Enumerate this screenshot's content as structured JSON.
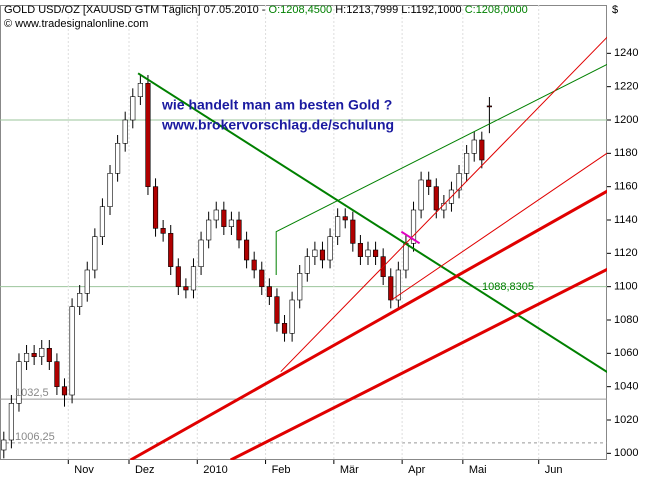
{
  "chart_data": {
    "type": "candlestick",
    "title": "GOLD USD/OZ [XAUUSD GTM  Täglich] 07.05.2010 -",
    "ohlc_labels": [
      {
        "text": "O:1208,4500",
        "color": "#008000"
      },
      {
        "text": "H:1213,7999",
        "color": "#000000"
      },
      {
        "text": "L:1192,1000",
        "color": "#000000"
      },
      {
        "text": "C:1208,0000",
        "color": "#008000"
      }
    ],
    "copyright": "© www.tradesignalonline.com",
    "y_unit": "$",
    "annotations": [
      "wie handelt man am besten Gold ?",
      "www.brokervorschlag.de/schulung"
    ],
    "categories": [
      null,
      null,
      null,
      null,
      null,
      null,
      null,
      null,
      null,
      "Nov",
      null,
      null,
      null,
      null,
      null,
      null,
      null,
      "Dez",
      null,
      null,
      null,
      null,
      null,
      null,
      null,
      null,
      "2010",
      null,
      null,
      null,
      null,
      null,
      null,
      null,
      null,
      "Feb",
      null,
      null,
      null,
      null,
      null,
      null,
      null,
      null,
      "Mär",
      null,
      null,
      null,
      null,
      null,
      null,
      null,
      null,
      "Apr",
      null,
      null,
      null,
      null,
      null,
      null,
      null,
      "Mai",
      null,
      null,
      null,
      null,
      null,
      null,
      null,
      null,
      null,
      "Jun",
      null,
      null,
      null,
      null,
      null,
      null,
      null,
      null
    ],
    "open": [
      1002,
      1008,
      1030,
      1055,
      1060,
      1058,
      1063,
      1055,
      1040,
      1035,
      1088,
      1096,
      1110,
      1130,
      1148,
      1168,
      1186,
      1200,
      1214,
      1222,
      1160,
      1135,
      1132,
      1112,
      1100,
      1098,
      1112,
      1128,
      1140,
      1146,
      1136,
      1140,
      1128,
      1116,
      1110,
      1100,
      1094,
      1078,
      1072,
      1092,
      1108,
      1118,
      1122,
      1116,
      1130,
      1142,
      1140,
      1126,
      1118,
      1122,
      1118,
      1106,
      1092,
      1110,
      1126,
      1146,
      1164,
      1160,
      1146,
      1150,
      1158,
      1168,
      1180,
      1188,
      1208.45,
      null,
      null,
      null,
      null,
      null,
      null,
      null,
      null,
      null,
      null,
      null,
      null,
      null,
      null,
      null
    ],
    "high": [
      1013,
      1035,
      1060,
      1065,
      1065,
      1068,
      1068,
      1060,
      1045,
      1093,
      1101,
      1115,
      1135,
      1153,
      1173,
      1191,
      1205,
      1219,
      1227,
      1227,
      1165,
      1140,
      1137,
      1117,
      1105,
      1117,
      1133,
      1145,
      1151,
      1151,
      1145,
      1145,
      1133,
      1121,
      1115,
      1105,
      1099,
      1083,
      1097,
      1113,
      1123,
      1127,
      1127,
      1135,
      1147,
      1147,
      1145,
      1131,
      1127,
      1127,
      1123,
      1111,
      1115,
      1131,
      1151,
      1169,
      1169,
      1165,
      1155,
      1163,
      1173,
      1185,
      1193,
      1193,
      1213.8,
      null,
      null,
      null,
      null,
      null,
      null,
      null,
      null,
      null,
      null,
      null,
      null,
      null,
      null,
      null
    ],
    "low": [
      997,
      1003,
      1025,
      1050,
      1053,
      1053,
      1050,
      1035,
      1028,
      1030,
      1083,
      1091,
      1105,
      1125,
      1143,
      1163,
      1181,
      1195,
      1209,
      1155,
      1130,
      1127,
      1107,
      1095,
      1093,
      1093,
      1107,
      1123,
      1135,
      1131,
      1131,
      1123,
      1111,
      1105,
      1095,
      1089,
      1073,
      1067,
      1067,
      1087,
      1103,
      1113,
      1111,
      1111,
      1125,
      1135,
      1121,
      1113,
      1113,
      1113,
      1101,
      1087,
      1087,
      1105,
      1121,
      1141,
      1155,
      1141,
      1141,
      1145,
      1153,
      1163,
      1175,
      1171,
      1192.1,
      null,
      null,
      null,
      null,
      null,
      null,
      null,
      null,
      null,
      null,
      null,
      null,
      null,
      null,
      null
    ],
    "close": [
      1008,
      1030,
      1055,
      1060,
      1058,
      1063,
      1055,
      1040,
      1035,
      1088,
      1096,
      1110,
      1130,
      1148,
      1168,
      1186,
      1200,
      1214,
      1222,
      1160,
      1135,
      1132,
      1112,
      1100,
      1098,
      1112,
      1128,
      1140,
      1146,
      1136,
      1140,
      1128,
      1116,
      1110,
      1100,
      1094,
      1078,
      1072,
      1092,
      1108,
      1118,
      1122,
      1116,
      1130,
      1142,
      1140,
      1126,
      1118,
      1122,
      1118,
      1106,
      1092,
      1110,
      1126,
      1146,
      1164,
      1160,
      1146,
      1150,
      1158,
      1168,
      1180,
      1188,
      1176,
      1208,
      null,
      null,
      null,
      null,
      null,
      null,
      null,
      null,
      null,
      null,
      null,
      null,
      null,
      null,
      null
    ],
    "up_color": "#ffffff",
    "down_color": "#b00000",
    "ylim": [
      996,
      1269
    ],
    "yticks": [
      1000,
      1020,
      1040,
      1060,
      1080,
      1100,
      1120,
      1140,
      1160,
      1180,
      1200,
      1220,
      1240
    ],
    "hlines": [
      1100,
      1200
    ],
    "levels": [
      {
        "value": 1032.5,
        "label": "1032,5"
      },
      {
        "value": 1006.25,
        "label": "1006,25"
      }
    ],
    "lines": [
      {
        "color": "#008000",
        "width": 2,
        "x": [
          17.7,
          79.8
        ],
        "y": [
          1228,
          1048
        ]
      },
      {
        "color": "#008000",
        "width": 1,
        "x": [
          35.9,
          35.9,
          79.8
        ],
        "y": [
          1107,
          1133,
          1234
        ]
      },
      {
        "color": "#e00000",
        "width": 3,
        "x": [
          16.7,
          79.8
        ],
        "y": [
          996,
          1158
        ]
      },
      {
        "color": "#e00000",
        "width": 3,
        "x": [
          29.9,
          79.8
        ],
        "y": [
          996,
          1111
        ]
      },
      {
        "color": "#e00000",
        "width": 1,
        "x": [
          36.5,
          79.8
        ],
        "y": [
          1049,
          1251
        ]
      },
      {
        "color": "#e00000",
        "width": 1,
        "x": [
          51.1,
          79.8
        ],
        "y": [
          1092,
          1181
        ]
      },
      {
        "color": "#e000c0",
        "width": 2,
        "x": [
          52.4,
          54.8
        ],
        "y": [
          1133,
          1126
        ]
      }
    ],
    "line_labels": [
      {
        "value": 1088.8305,
        "label": "1088,8305",
        "color": "#008000"
      }
    ]
  }
}
